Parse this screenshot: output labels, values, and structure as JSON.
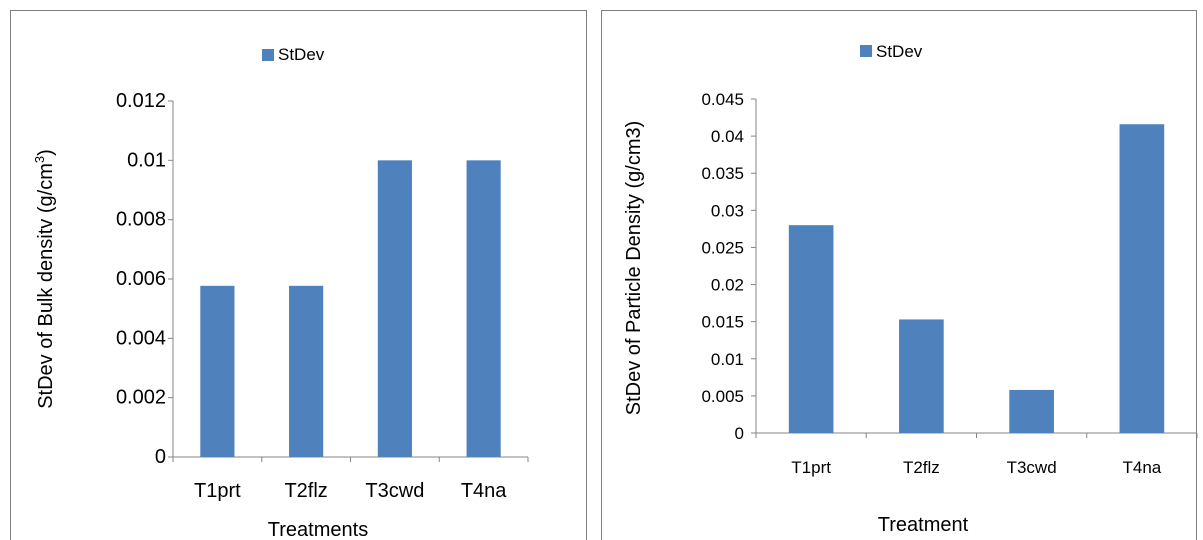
{
  "chart_data": [
    {
      "type": "bar",
      "categories": [
        "T1prt",
        "T2flz",
        "T3cwd",
        "T4na"
      ],
      "series": [
        {
          "name": "StDev",
          "values": [
            0.00577,
            0.00577,
            0.01,
            0.01
          ]
        }
      ],
      "title": "",
      "xlabel": "Treatments",
      "ylabel": "StDev of Bulk densitv (g/cm",
      "ylabel_superscript": "3",
      "ylabel_suffix": ")",
      "ylim": [
        0,
        0.012
      ],
      "yticks": [
        "0",
        "0.002",
        "0.004",
        "0.006",
        "0.008",
        "0.01",
        "0.012"
      ],
      "legend": "top-center",
      "grid": false,
      "bar_color": "#4f81bd"
    },
    {
      "type": "bar",
      "categories": [
        "T1prt",
        "T2flz",
        "T3cwd",
        "T4na"
      ],
      "series": [
        {
          "name": "StDev",
          "values": [
            0.028,
            0.0153,
            0.0058,
            0.0416
          ]
        }
      ],
      "title": "",
      "xlabel": "Treatment",
      "ylabel": "StDev of Particle Density (g/cm3)",
      "ylim": [
        0,
        0.045
      ],
      "yticks": [
        "0",
        "0.005",
        "0.01",
        "0.015",
        "0.02",
        "0.025",
        "0.03",
        "0.035",
        "0.04",
        "0.045"
      ],
      "legend": "top-center",
      "grid": false,
      "bar_color": "#4f81bd"
    }
  ]
}
